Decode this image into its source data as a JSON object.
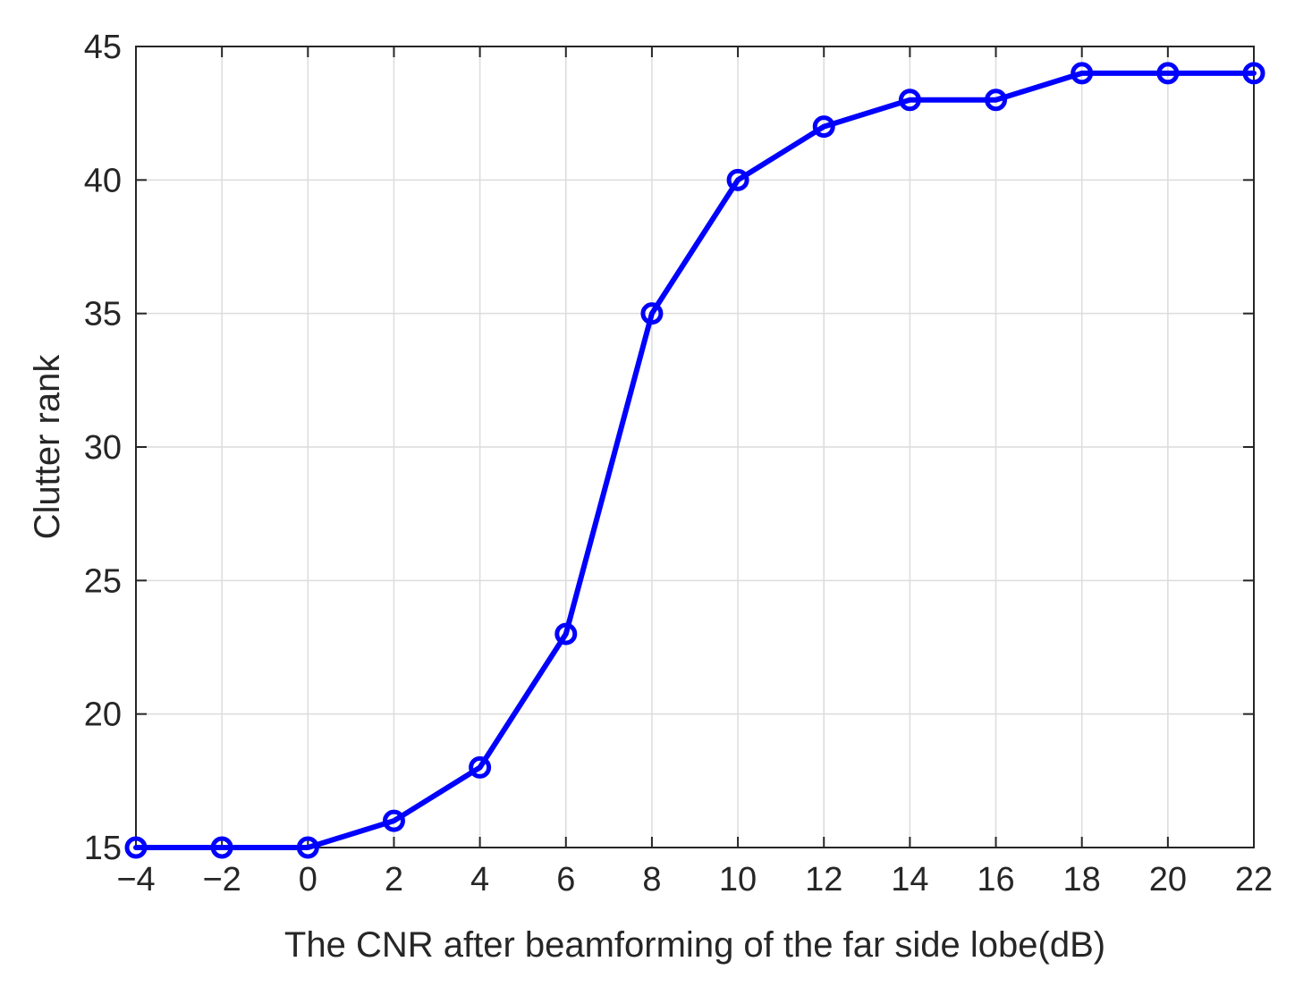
{
  "chart_data": {
    "type": "line",
    "title": "",
    "xlabel": "The CNR after beamforming of the far side lobe(dB)",
    "ylabel": "Clutter rank",
    "xlim": [
      -4,
      22
    ],
    "ylim": [
      15,
      45
    ],
    "x_ticks": [
      -4,
      -2,
      0,
      2,
      4,
      6,
      8,
      10,
      12,
      14,
      16,
      18,
      20,
      22
    ],
    "x_tick_labels": [
      "−4",
      "−2",
      "0",
      "2",
      "4",
      "6",
      "8",
      "10",
      "12",
      "14",
      "16",
      "18",
      "20",
      "22"
    ],
    "y_ticks": [
      15,
      20,
      25,
      30,
      35,
      40,
      45
    ],
    "y_tick_labels": [
      "15",
      "20",
      "25",
      "30",
      "35",
      "40",
      "45"
    ],
    "grid": true,
    "legend": "none",
    "series": [
      {
        "color": "#0000ff",
        "marker": "circle",
        "x": [
          -4,
          -2,
          0,
          2,
          4,
          6,
          8,
          10,
          12,
          14,
          16,
          18,
          20,
          22
        ],
        "y": [
          15,
          15,
          15,
          16,
          18,
          23,
          35,
          40,
          42,
          43,
          43,
          44,
          44,
          44
        ]
      }
    ]
  }
}
